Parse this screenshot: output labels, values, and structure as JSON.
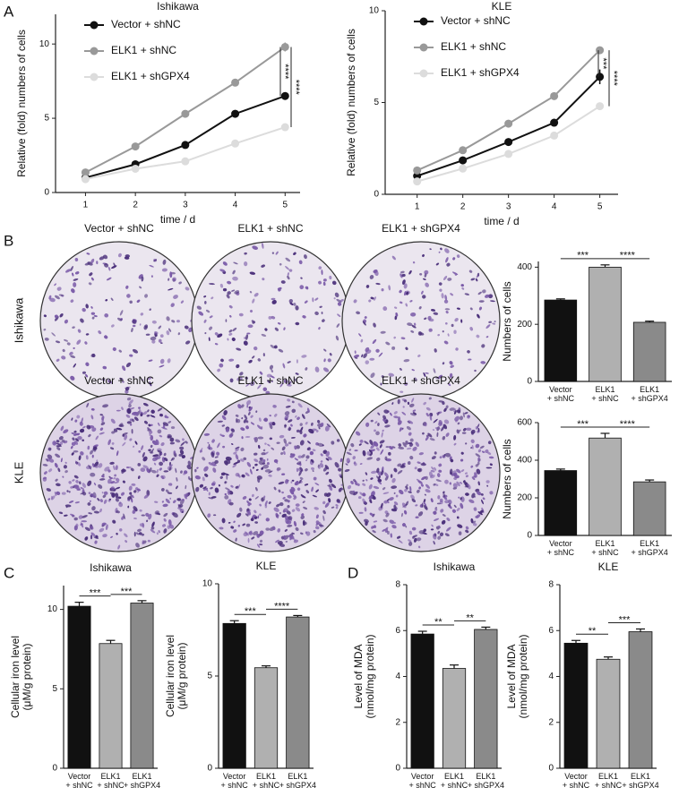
{
  "panel_labels": [
    "A",
    "B",
    "C",
    "D"
  ],
  "plates": {
    "column_labels": [
      "Vector + shNC",
      "ELK1 + shNC",
      "ELK1 + shGPX4"
    ],
    "row_labels": [
      "Ishikawa",
      "KLE"
    ]
  },
  "chart_data": [
    {
      "type": "line",
      "title": "Ishikawa",
      "xlabel": "time / d",
      "ylabel": "Relative (fold) numbers of cells",
      "x": [
        1,
        2,
        3,
        4,
        5
      ],
      "xlim": [
        0.4,
        5.3
      ],
      "xticks": [
        1,
        2,
        3,
        4,
        5
      ],
      "ylim": [
        0,
        12
      ],
      "yticks": [
        0,
        5,
        10
      ],
      "legend": "upper left",
      "series": [
        {
          "name": "Vector + shNC",
          "color": "#111111",
          "values": [
            1.0,
            1.9,
            3.2,
            5.3,
            6.5
          ],
          "errors": [
            0.05,
            0.25,
            0.2,
            0.25,
            0.15
          ]
        },
        {
          "name": "ELK1 + shNC",
          "color": "#999999",
          "values": [
            1.35,
            3.1,
            5.3,
            7.4,
            9.8
          ],
          "errors": [
            0.1,
            0.1,
            0.1,
            0.25,
            0.3
          ]
        },
        {
          "name": "ELK1 + shGPX4",
          "color": "#dcdcdc",
          "values": [
            0.9,
            1.6,
            2.1,
            3.3,
            4.4
          ],
          "errors": [
            0.05,
            0.1,
            0.1,
            0.1,
            0.1
          ]
        }
      ],
      "annotations": [
        "****",
        "****"
      ]
    },
    {
      "type": "line",
      "title": "KLE",
      "xlabel": "time / d",
      "ylabel": "Relative (fold) numbers of cells",
      "x": [
        1,
        2,
        3,
        4,
        5
      ],
      "xlim": [
        0.3,
        5.4
      ],
      "xticks": [
        1,
        2,
        3,
        4,
        5
      ],
      "ylim": [
        0,
        10
      ],
      "yticks": [
        0,
        5,
        10
      ],
      "legend": "upper left",
      "series": [
        {
          "name": "Vector + shNC",
          "color": "#111111",
          "values": [
            1.0,
            1.85,
            2.85,
            3.9,
            6.4
          ],
          "errors": [
            0.1,
            0.1,
            0.1,
            0.1,
            0.4
          ]
        },
        {
          "name": "ELK1 + shNC",
          "color": "#999999",
          "values": [
            1.3,
            2.4,
            3.85,
            5.35,
            7.85
          ],
          "errors": [
            0.1,
            0.1,
            0.1,
            0.1,
            0.1
          ]
        },
        {
          "name": "ELK1 + shGPX4",
          "color": "#dcdcdc",
          "values": [
            0.7,
            1.4,
            2.2,
            3.2,
            4.8
          ],
          "errors": [
            0.1,
            0.1,
            0.1,
            0.1,
            0.2
          ]
        }
      ],
      "annotations": [
        "***",
        "****"
      ]
    },
    {
      "type": "bar",
      "ylabel": "Numbers of cells",
      "categories": [
        "Vector\n+ shNC",
        "ELK1\n+ shNC",
        "ELK1\n+ shGPX4"
      ],
      "values": [
        285,
        400,
        207
      ],
      "errors": [
        4,
        8,
        4
      ],
      "colors": [
        "#111111",
        "#b0b0b0",
        "#8a8a8a"
      ],
      "ylim": [
        0,
        420
      ],
      "yticks": [
        0,
        200,
        400
      ],
      "annotations": [
        "***",
        "****"
      ]
    },
    {
      "type": "bar",
      "ylabel": "Numbers of cells",
      "categories": [
        "Vector\n+ shNC",
        "ELK1\n+ shNC",
        "ELK1\n+ shGPX4"
      ],
      "values": [
        345,
        518,
        285
      ],
      "errors": [
        8,
        25,
        10
      ],
      "colors": [
        "#111111",
        "#b0b0b0",
        "#8a8a8a"
      ],
      "ylim": [
        0,
        600
      ],
      "yticks": [
        0,
        200,
        400,
        600
      ],
      "annotations": [
        "***",
        "****"
      ]
    },
    {
      "type": "bar",
      "title": "Ishikawa",
      "ylabel": [
        "Cellular iron level",
        "(μM/g protein)"
      ],
      "categories": [
        "Vector\n+ shNC",
        "ELK1\n+ shNC",
        "ELK1\n+ shGPX4"
      ],
      "values": [
        10.2,
        7.85,
        10.4
      ],
      "errors": [
        0.25,
        0.2,
        0.15
      ],
      "colors": [
        "#111111",
        "#b0b0b0",
        "#8a8a8a"
      ],
      "ylim": [
        0,
        11.5
      ],
      "yticks": [
        0,
        5,
        10
      ],
      "annotations": [
        "***",
        "***"
      ]
    },
    {
      "type": "bar",
      "title": "KLE",
      "ylabel": [
        "Cellular iron level",
        "(μM/g protein)"
      ],
      "categories": [
        "Vector\n+ shNC",
        "ELK1\n+ shNC",
        "ELK1\n+ shGPX4"
      ],
      "values": [
        7.85,
        5.45,
        8.2
      ],
      "errors": [
        0.15,
        0.1,
        0.08
      ],
      "colors": [
        "#111111",
        "#b0b0b0",
        "#8a8a8a"
      ],
      "ylim": [
        0,
        10
      ],
      "yticks": [
        0,
        5,
        10
      ],
      "annotations": [
        "***",
        "****"
      ]
    },
    {
      "type": "bar",
      "title": "Ishikawa",
      "ylabel": [
        "Level of MDA",
        "(nmol/mg protein)"
      ],
      "categories": [
        "Vector\n+ shNC",
        "ELK1\n+ shNC",
        "ELK1\n+ shGPX4"
      ],
      "values": [
        5.85,
        4.35,
        6.05
      ],
      "errors": [
        0.12,
        0.15,
        0.1
      ],
      "colors": [
        "#111111",
        "#b0b0b0",
        "#8a8a8a"
      ],
      "ylim": [
        0,
        8
      ],
      "yticks": [
        0,
        2,
        4,
        6,
        8
      ],
      "annotations": [
        "**",
        "**"
      ]
    },
    {
      "type": "bar",
      "title": "KLE",
      "ylabel": [
        "Level of MDA",
        "(nmol/mg protein)"
      ],
      "categories": [
        "Vector\n+ shNC",
        "ELK1\n+ shNC",
        "ELK1\n+ shGPX4"
      ],
      "values": [
        5.45,
        4.75,
        5.95
      ],
      "errors": [
        0.12,
        0.1,
        0.12
      ],
      "colors": [
        "#111111",
        "#b0b0b0",
        "#8a8a8a"
      ],
      "ylim": [
        0,
        8
      ],
      "yticks": [
        0,
        2,
        4,
        6,
        8
      ],
      "annotations": [
        "**",
        "***"
      ]
    }
  ]
}
